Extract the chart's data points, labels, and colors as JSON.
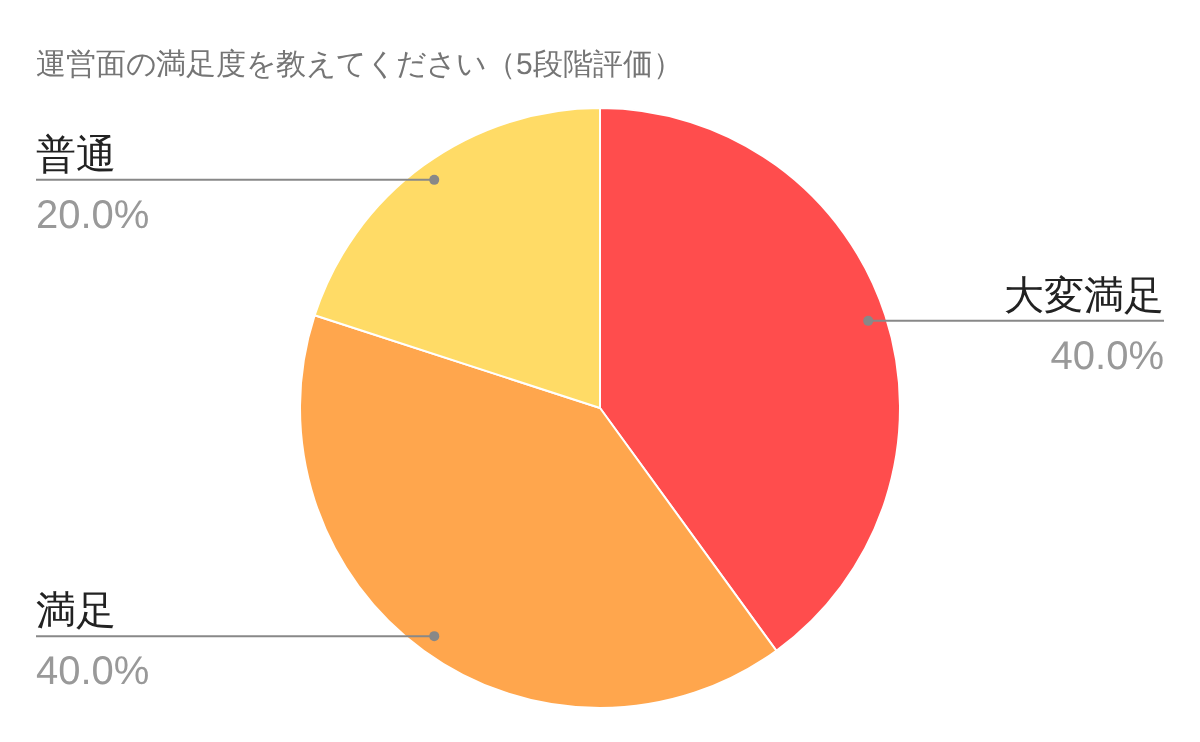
{
  "chart_data": {
    "type": "pie",
    "title": "運営面の満足度を教えてください（5段階評価）",
    "categories": [
      "大変満足",
      "満足",
      "普通"
    ],
    "values": [
      40,
      40,
      20
    ],
    "value_labels": [
      "40.0%",
      "40.0%",
      "20.0%"
    ],
    "colors": [
      "#ff4d4d",
      "#ffa64d",
      "#ffdb66"
    ],
    "legend": false
  }
}
